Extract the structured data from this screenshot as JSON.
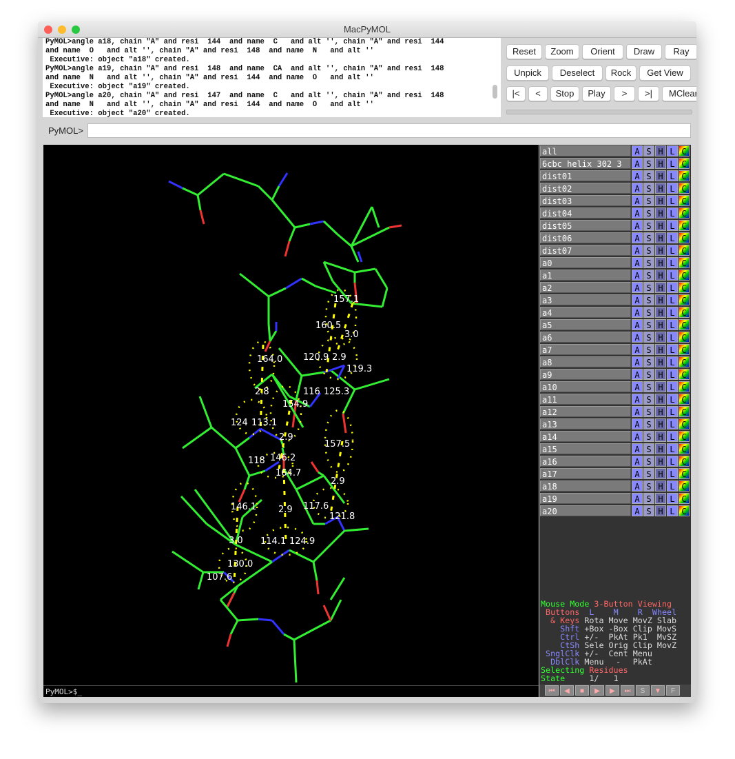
{
  "window": {
    "title": "MacPyMOL"
  },
  "console": {
    "lines": [
      "PyMOL>angle a18, chain \"A\" and resi  144  and name  C   and alt '', chain \"A\" and resi  144",
      "and name  O   and alt '', chain \"A\" and resi  148  and name  N   and alt ''",
      " Executive: object \"a18\" created.",
      "PyMOL>angle a19, chain \"A\" and resi  148  and name  CA  and alt '', chain \"A\" and resi  148",
      "and name  N   and alt '', chain \"A\" and resi  144  and name  O   and alt ''",
      " Executive: object \"a19\" created.",
      "PyMOL>angle a20, chain \"A\" and resi  147  and name  C   and alt '', chain \"A\" and resi  148",
      "and name  N   and alt '', chain \"A\" and resi  144  and name  O   and alt ''",
      " Executive: object \"a20\" created."
    ]
  },
  "buttons": {
    "row1": [
      "Reset",
      "Zoom",
      "Orient",
      "Draw",
      "Ray"
    ],
    "row2": [
      "Unpick",
      "Deselect",
      "Rock",
      "Get View"
    ],
    "row3": [
      "|<",
      "<",
      "Stop",
      "Play",
      ">",
      ">|",
      "MClear"
    ]
  },
  "command": {
    "label": "PyMOL>",
    "value": ""
  },
  "viewer": {
    "prompt": "PyMOL>$_",
    "labels": [
      "157.1",
      "160.5",
      "3.0",
      "164.0",
      "120.9",
      "2.9",
      "119.3",
      "116",
      "125.3",
      "2.8",
      "154.9",
      "124",
      "113.1",
      "2.9",
      "157.5",
      "118",
      "146.2",
      "164.7",
      "2.9",
      "146.1",
      "2.9",
      "117.6",
      "121.8",
      "3.0",
      "114.1",
      "124.9",
      "130.0",
      "107.6"
    ]
  },
  "objects": {
    "items": [
      "all",
      "6cbc_helix_302_3",
      "dist01",
      "dist02",
      "dist03",
      "dist04",
      "dist05",
      "dist06",
      "dist07",
      "a0",
      "a1",
      "a2",
      "a3",
      "a4",
      "a5",
      "a6",
      "a7",
      "a8",
      "a9",
      "a10",
      "a11",
      "a12",
      "a13",
      "a14",
      "a15",
      "a16",
      "a17",
      "a18",
      "a19",
      "a20"
    ],
    "buttons": [
      "A",
      "S",
      "H",
      "L",
      "C"
    ]
  },
  "mouse_mode": {
    "line1": [
      "Mouse Mode ",
      "3-Button Viewing"
    ],
    "header": [
      "Buttons",
      "L",
      "M",
      "R",
      "Wheel"
    ],
    "rows": [
      [
        "& Keys",
        "Rota",
        "Move",
        "MovZ",
        "Slab"
      ],
      [
        "Shft",
        "+Box",
        "-Box",
        "Clip",
        "MovS"
      ],
      [
        "Ctrl",
        "+/-",
        "PkAt",
        "Pk1",
        "MvSZ"
      ],
      [
        "CtSh",
        "Sele",
        "Orig",
        "Clip",
        "MovZ"
      ],
      [
        "SnglClk",
        "+/-",
        "Cent",
        "Menu",
        ""
      ],
      [
        "DblClk",
        "Menu",
        "-",
        "PkAt",
        ""
      ]
    ],
    "selecting": [
      "Selecting ",
      "Residues"
    ],
    "state": [
      "State",
      "1/",
      "1"
    ]
  },
  "player": [
    "first",
    "prev",
    "stop",
    "play",
    "next",
    "last",
    "S",
    "menu",
    "F"
  ],
  "colors": {
    "carbon": "#33ee33",
    "nitrogen": "#3333ff",
    "oxygen": "#ee3333",
    "measure": "#ffff00"
  }
}
